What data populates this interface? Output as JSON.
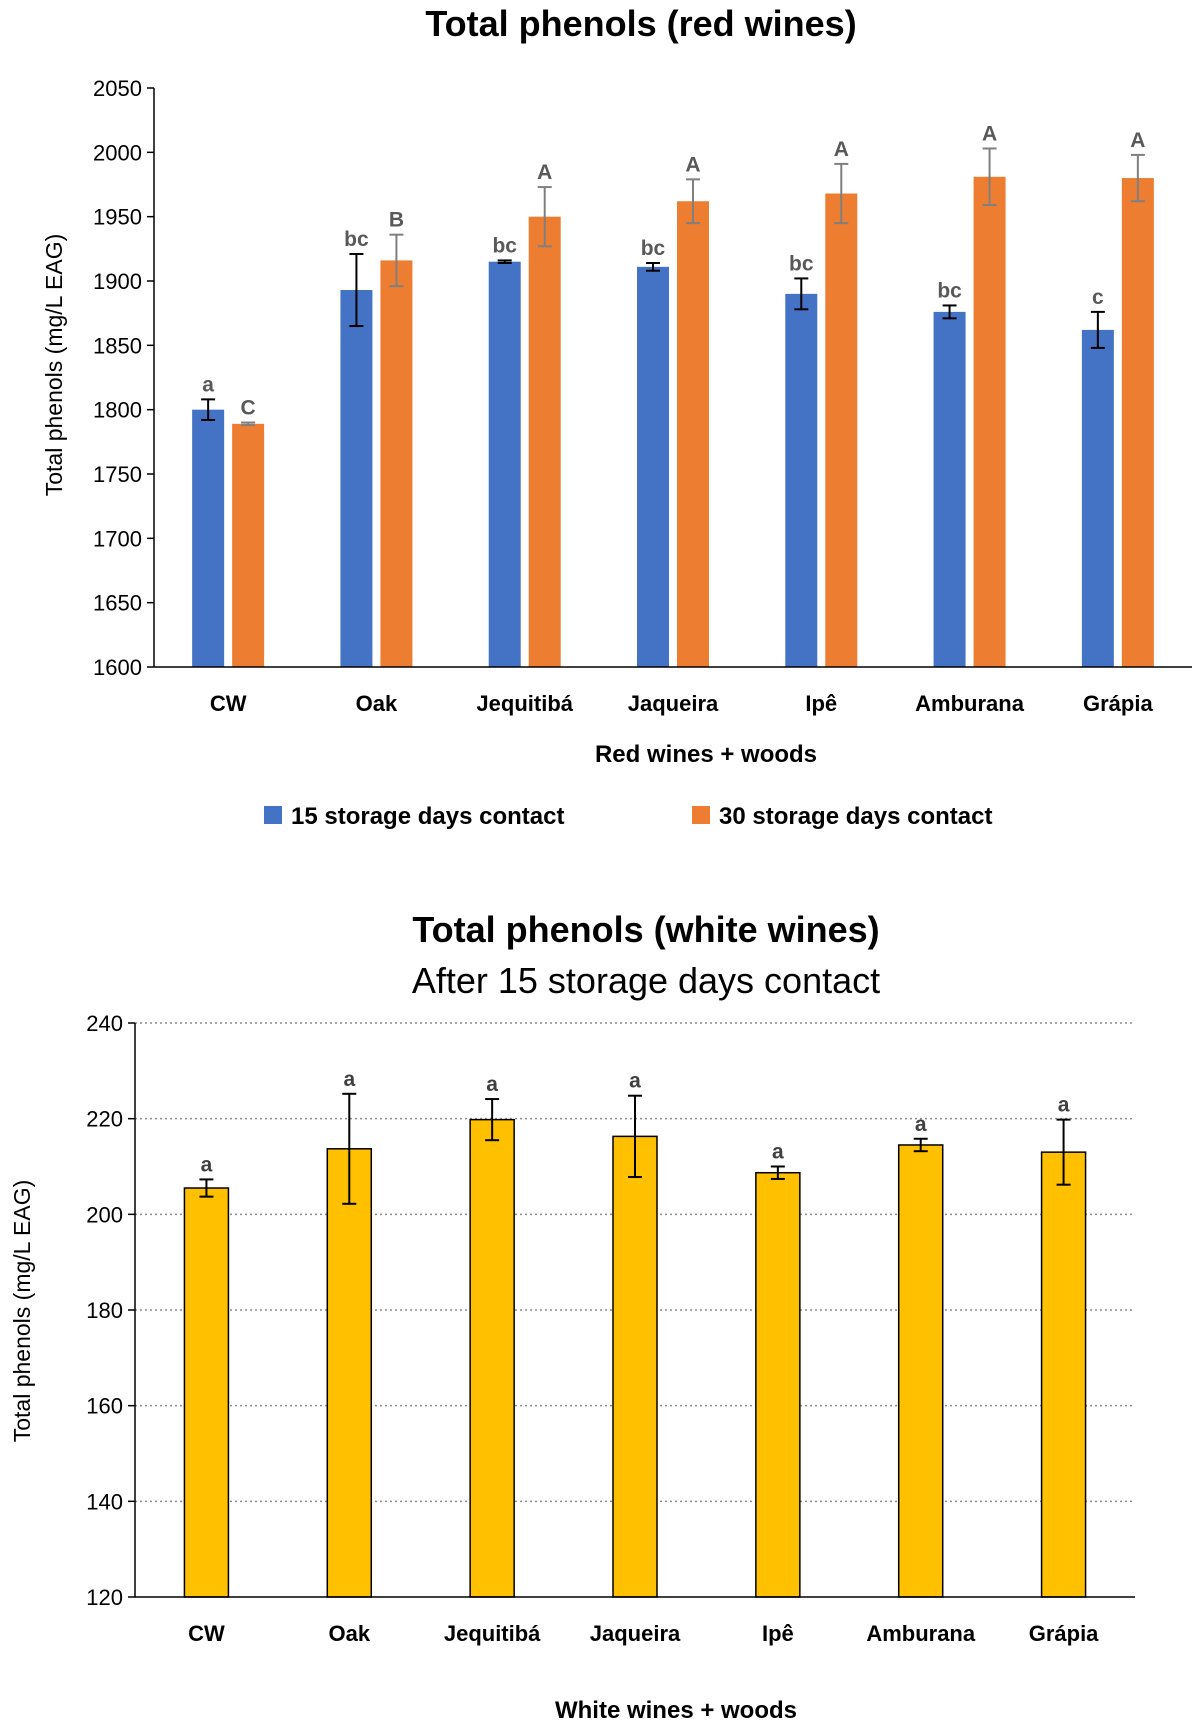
{
  "chart_data": [
    {
      "type": "bar",
      "title": "Total phenols (red wines)",
      "xlabel": "Red wines + woods",
      "ylabel": "Total phenols (mg/L EAG)",
      "ylim": [
        1600,
        2050
      ],
      "yticks": [
        1600,
        1650,
        1700,
        1750,
        1800,
        1850,
        1900,
        1950,
        2000,
        2050
      ],
      "grid": false,
      "legend_position": "bottom",
      "categories": [
        "CW",
        "Oak",
        "Jequitibá",
        "Jaqueira",
        "Ipê",
        "Amburana",
        "Grápia"
      ],
      "series": [
        {
          "name": "15 storage days contact",
          "color": "#4472C4",
          "values": [
            1800,
            1893,
            1915,
            1911,
            1890,
            1876,
            1862
          ],
          "errors": [
            8,
            28,
            1,
            3,
            12,
            5,
            14
          ],
          "labels": [
            "a",
            "bc",
            "bc",
            "bc",
            "bc",
            "bc",
            "c"
          ]
        },
        {
          "name": "30 storage days contact",
          "color": "#ED7D31",
          "values": [
            1789,
            1916,
            1950,
            1962,
            1968,
            1981,
            1980
          ],
          "errors": [
            1,
            20,
            23,
            17,
            23,
            22,
            18
          ],
          "labels": [
            "C",
            "B",
            "A",
            "A",
            "A",
            "A",
            "A"
          ]
        }
      ]
    },
    {
      "type": "bar",
      "title": "Total phenols (white wines)",
      "subtitle": "After 15 storage days contact",
      "xlabel": "White wines + woods",
      "ylabel": "Total phenols (mg/L EAG)",
      "ylim": [
        120,
        240
      ],
      "yticks": [
        120,
        140,
        160,
        180,
        200,
        220,
        240
      ],
      "grid": true,
      "categories": [
        "CW",
        "Oak",
        "Jequitibá",
        "Jaqueira",
        "Ipê",
        "Amburana",
        "Grápia"
      ],
      "series": [
        {
          "color": "#FFC000",
          "values": [
            205.5,
            213.7,
            219.8,
            216.3,
            208.7,
            214.5,
            213.0
          ],
          "errors": [
            1.8,
            11.5,
            4.3,
            8.5,
            1.3,
            1.3,
            6.8
          ],
          "labels": [
            "a",
            "a",
            "a",
            "a",
            "a",
            "a",
            "a"
          ]
        }
      ]
    }
  ]
}
